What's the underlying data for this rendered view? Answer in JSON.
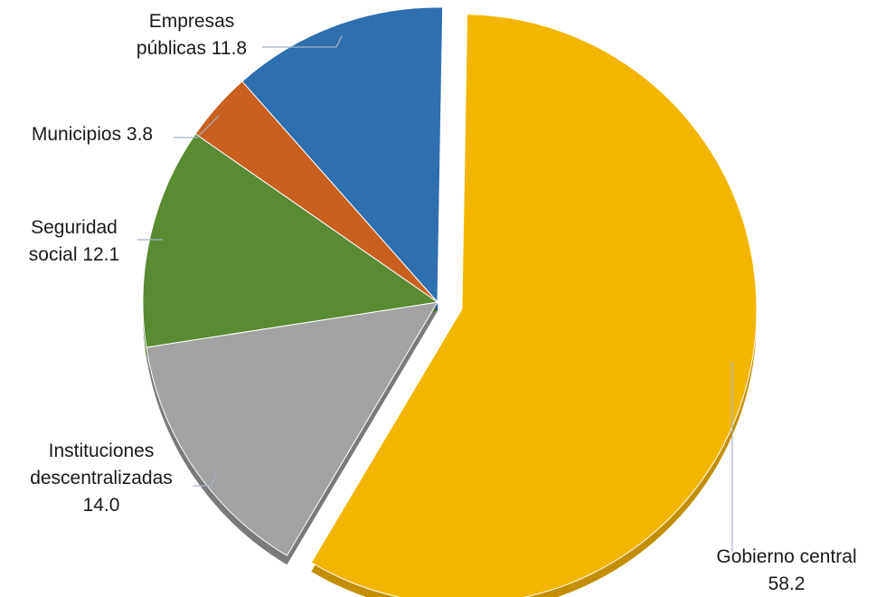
{
  "chart_data": {
    "type": "pie",
    "title": "",
    "slices": [
      {
        "label_lines": [
          "Gobierno central",
          "58.2"
        ],
        "value": 58.2,
        "color": "#f2b600",
        "side": "#c38f00",
        "explode": true
      },
      {
        "label_lines": [
          "Instituciones",
          "descentralizadas",
          "14.0"
        ],
        "value": 14.0,
        "color": "#a3a3a3",
        "side": "#7a7a7a",
        "explode": false
      },
      {
        "label_lines": [
          "Seguridad",
          "social 12.1"
        ],
        "value": 12.1,
        "color": "#5a8a32",
        "side": "#3f6a1f",
        "explode": false
      },
      {
        "label_lines": [
          "Municipios 3.8"
        ],
        "value": 3.8,
        "color": "#c8601f",
        "side": "#7c3608",
        "explode": false
      },
      {
        "label_lines": [
          "Empresas",
          "públicas 11.8"
        ],
        "value": 11.8,
        "color": "#2e6fb0",
        "side": "#1d4f86",
        "explode": false
      }
    ],
    "legend": "none",
    "data_labels": "outside with leader lines"
  }
}
